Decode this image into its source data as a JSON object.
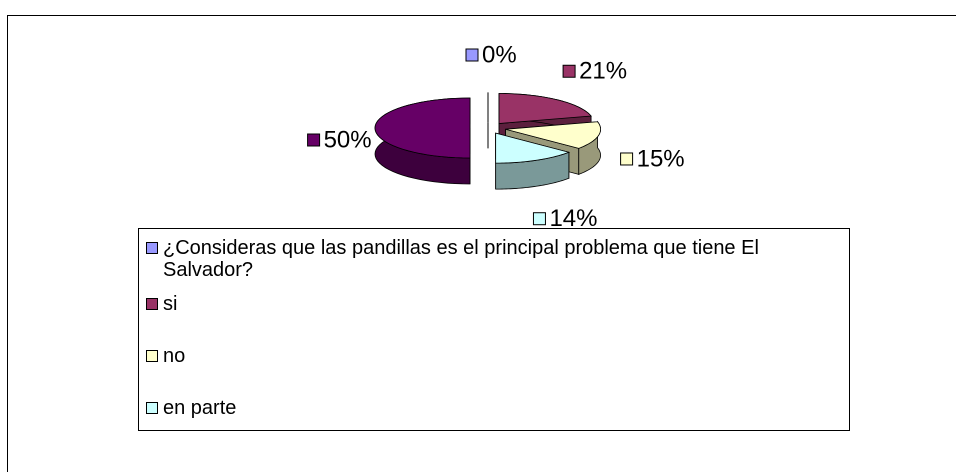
{
  "chart_data": {
    "type": "pie3d",
    "categories": [
      "¿Consideras que las pandillas es el principal problema que tiene El Salvador?",
      "si",
      "no",
      "en parte",
      null
    ],
    "values": [
      0,
      21,
      15,
      14,
      50
    ],
    "value_labels": [
      "0%",
      "21%",
      "15%",
      "14%",
      "50%"
    ],
    "colors": [
      "#9999ff",
      "#993366",
      "#ffffcc",
      "#ccffff",
      "#660066"
    ],
    "legend": "bottom"
  }
}
